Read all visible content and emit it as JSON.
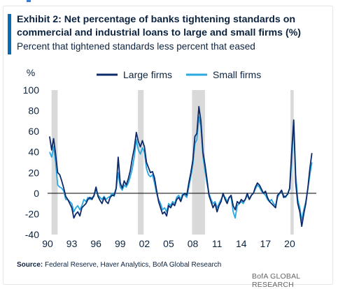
{
  "header": {
    "title": "Exhibit 2: Net percentage of banks tightening standards on commercial and industrial loans to large and small firms (%)",
    "subtitle": "Percent that tightened standards less percent that eased"
  },
  "footer": {
    "source_label": "Source:",
    "source_text": "Federal Reserve, Haver Analytics, BofA Global Research",
    "brand": "BofA GLOBAL RESEARCH"
  },
  "colors": {
    "large": "#0d2a6b",
    "small": "#2aa9e0",
    "recession": "#d9d9d9",
    "zero_line": "#000000"
  },
  "chart_data": {
    "type": "line",
    "ylabel": "%",
    "ylim": [
      -40,
      100
    ],
    "yticks": [
      -40,
      -20,
      0,
      20,
      40,
      60,
      80,
      100
    ],
    "xlim": [
      1990,
      2023.3
    ],
    "xticks": [
      1990,
      1993,
      1996,
      1999,
      2002,
      2005,
      2008,
      2011,
      2014,
      2017,
      2020
    ],
    "xtick_labels": [
      "90",
      "93",
      "96",
      "99",
      "02",
      "05",
      "08",
      "11",
      "14",
      "17",
      "20"
    ],
    "recessions": [
      [
        1990.5,
        1991.25
      ],
      [
        2001.2,
        2001.9
      ],
      [
        2007.9,
        2009.5
      ],
      [
        2020.1,
        2020.5
      ]
    ],
    "legend": "top",
    "series": [
      {
        "name": "Large firms",
        "color": "#0d2a6b",
        "points": [
          [
            1990.25,
            55
          ],
          [
            1990.5,
            42
          ],
          [
            1990.75,
            53
          ],
          [
            1991.0,
            38
          ],
          [
            1991.25,
            20
          ],
          [
            1991.5,
            18
          ],
          [
            1991.75,
            12
          ],
          [
            1992.0,
            5
          ],
          [
            1992.25,
            -3
          ],
          [
            1992.5,
            -6
          ],
          [
            1992.75,
            -10
          ],
          [
            1993.0,
            -14
          ],
          [
            1993.25,
            -24
          ],
          [
            1993.5,
            -20
          ],
          [
            1993.75,
            -18
          ],
          [
            1994.0,
            -22
          ],
          [
            1994.25,
            -14
          ],
          [
            1994.5,
            -12
          ],
          [
            1994.75,
            -10
          ],
          [
            1995.0,
            -6
          ],
          [
            1995.25,
            -4
          ],
          [
            1995.5,
            -6
          ],
          [
            1995.75,
            -2
          ],
          [
            1996.0,
            6
          ],
          [
            1996.25,
            -3
          ],
          [
            1996.5,
            -7
          ],
          [
            1996.75,
            -10
          ],
          [
            1997.0,
            -4
          ],
          [
            1997.25,
            -8
          ],
          [
            1997.5,
            -10
          ],
          [
            1997.75,
            -4
          ],
          [
            1998.0,
            -2
          ],
          [
            1998.25,
            -2
          ],
          [
            1998.5,
            5
          ],
          [
            1998.75,
            35
          ],
          [
            1999.0,
            10
          ],
          [
            1999.25,
            5
          ],
          [
            1999.5,
            12
          ],
          [
            1999.75,
            8
          ],
          [
            2000.0,
            14
          ],
          [
            2000.25,
            22
          ],
          [
            2000.5,
            34
          ],
          [
            2000.75,
            44
          ],
          [
            2001.0,
            59
          ],
          [
            2001.25,
            50
          ],
          [
            2001.5,
            45
          ],
          [
            2001.75,
            51
          ],
          [
            2002.0,
            45
          ],
          [
            2002.25,
            30
          ],
          [
            2002.5,
            25
          ],
          [
            2002.75,
            20
          ],
          [
            2003.0,
            21
          ],
          [
            2003.25,
            15
          ],
          [
            2003.5,
            3
          ],
          [
            2003.75,
            -8
          ],
          [
            2004.0,
            -14
          ],
          [
            2004.25,
            -20
          ],
          [
            2004.5,
            -18
          ],
          [
            2004.75,
            -22
          ],
          [
            2005.0,
            -12
          ],
          [
            2005.25,
            -14
          ],
          [
            2005.5,
            -10
          ],
          [
            2005.75,
            -12
          ],
          [
            2006.0,
            -6
          ],
          [
            2006.25,
            -4
          ],
          [
            2006.5,
            -8
          ],
          [
            2006.75,
            -2
          ],
          [
            2007.0,
            0
          ],
          [
            2007.25,
            -2
          ],
          [
            2007.5,
            10
          ],
          [
            2007.75,
            20
          ],
          [
            2008.0,
            32
          ],
          [
            2008.25,
            55
          ],
          [
            2008.5,
            58
          ],
          [
            2008.75,
            84
          ],
          [
            2009.0,
            70
          ],
          [
            2009.25,
            40
          ],
          [
            2009.5,
            28
          ],
          [
            2009.75,
            14
          ],
          [
            2010.0,
            -2
          ],
          [
            2010.25,
            -8
          ],
          [
            2010.5,
            -14
          ],
          [
            2010.75,
            -10
          ],
          [
            2011.0,
            -18
          ],
          [
            2011.25,
            -12
          ],
          [
            2011.5,
            -8
          ],
          [
            2011.75,
            0
          ],
          [
            2012.0,
            -6
          ],
          [
            2012.25,
            -10
          ],
          [
            2012.5,
            -4
          ],
          [
            2012.75,
            -2
          ],
          [
            2013.0,
            -12
          ],
          [
            2013.25,
            -16
          ],
          [
            2013.5,
            -8
          ],
          [
            2013.75,
            -10
          ],
          [
            2014.0,
            -6
          ],
          [
            2014.25,
            -8
          ],
          [
            2014.5,
            -6
          ],
          [
            2014.75,
            0
          ],
          [
            2015.0,
            -6
          ],
          [
            2015.25,
            -2
          ],
          [
            2015.5,
            0
          ],
          [
            2015.75,
            6
          ],
          [
            2016.0,
            10
          ],
          [
            2016.25,
            8
          ],
          [
            2016.5,
            4
          ],
          [
            2016.75,
            0
          ],
          [
            2017.0,
            2
          ],
          [
            2017.25,
            -4
          ],
          [
            2017.5,
            -8
          ],
          [
            2017.75,
            -10
          ],
          [
            2018.0,
            -12
          ],
          [
            2018.25,
            -14
          ],
          [
            2018.5,
            -2
          ],
          [
            2018.75,
            0
          ],
          [
            2019.0,
            3
          ],
          [
            2019.25,
            -4
          ],
          [
            2019.5,
            -3
          ],
          [
            2019.75,
            -1
          ],
          [
            2020.0,
            5
          ],
          [
            2020.25,
            40
          ],
          [
            2020.5,
            71
          ],
          [
            2020.75,
            10
          ],
          [
            2021.0,
            -10
          ],
          [
            2021.25,
            -18
          ],
          [
            2021.5,
            -32
          ],
          [
            2021.75,
            -20
          ],
          [
            2022.0,
            -10
          ],
          [
            2022.25,
            5
          ],
          [
            2022.5,
            24
          ],
          [
            2022.75,
            39
          ]
        ]
      },
      {
        "name": "Small firms",
        "color": "#2aa9e0",
        "points": [
          [
            1990.25,
            40
          ],
          [
            1990.5,
            35
          ],
          [
            1990.75,
            45
          ],
          [
            1991.0,
            30
          ],
          [
            1991.25,
            8
          ],
          [
            1991.5,
            6
          ],
          [
            1991.75,
            5
          ],
          [
            1992.0,
            2
          ],
          [
            1992.25,
            -6
          ],
          [
            1992.5,
            -6
          ],
          [
            1992.75,
            -8
          ],
          [
            1993.0,
            -10
          ],
          [
            1993.25,
            -18
          ],
          [
            1993.5,
            -14
          ],
          [
            1993.75,
            -12
          ],
          [
            1994.0,
            -16
          ],
          [
            1994.25,
            -12
          ],
          [
            1994.5,
            -6
          ],
          [
            1994.75,
            -8
          ],
          [
            1995.0,
            -4
          ],
          [
            1995.25,
            -6
          ],
          [
            1995.5,
            -4
          ],
          [
            1995.75,
            -3
          ],
          [
            1996.0,
            4
          ],
          [
            1996.25,
            -2
          ],
          [
            1996.5,
            -4
          ],
          [
            1996.75,
            -6
          ],
          [
            1997.0,
            -3
          ],
          [
            1997.25,
            -6
          ],
          [
            1997.5,
            -4
          ],
          [
            1997.75,
            -3
          ],
          [
            1998.0,
            0
          ],
          [
            1998.25,
            -3
          ],
          [
            1998.5,
            4
          ],
          [
            1998.75,
            20
          ],
          [
            1999.0,
            6
          ],
          [
            1999.25,
            3
          ],
          [
            1999.5,
            8
          ],
          [
            1999.75,
            6
          ],
          [
            2000.0,
            10
          ],
          [
            2000.25,
            16
          ],
          [
            2000.5,
            24
          ],
          [
            2000.75,
            36
          ],
          [
            2001.0,
            52
          ],
          [
            2001.25,
            42
          ],
          [
            2001.5,
            38
          ],
          [
            2001.75,
            44
          ],
          [
            2002.0,
            40
          ],
          [
            2002.25,
            24
          ],
          [
            2002.5,
            18
          ],
          [
            2002.75,
            16
          ],
          [
            2003.0,
            18
          ],
          [
            2003.25,
            10
          ],
          [
            2003.5,
            0
          ],
          [
            2003.75,
            -6
          ],
          [
            2004.0,
            -10
          ],
          [
            2004.25,
            -16
          ],
          [
            2004.5,
            -14
          ],
          [
            2004.75,
            -18
          ],
          [
            2005.0,
            -10
          ],
          [
            2005.25,
            -12
          ],
          [
            2005.5,
            -8
          ],
          [
            2005.75,
            -10
          ],
          [
            2006.0,
            -4
          ],
          [
            2006.25,
            -2
          ],
          [
            2006.5,
            -6
          ],
          [
            2006.75,
            0
          ],
          [
            2007.0,
            -2
          ],
          [
            2007.25,
            -4
          ],
          [
            2007.5,
            6
          ],
          [
            2007.75,
            16
          ],
          [
            2008.0,
            28
          ],
          [
            2008.25,
            48
          ],
          [
            2008.5,
            52
          ],
          [
            2008.75,
            74
          ],
          [
            2009.0,
            64
          ],
          [
            2009.25,
            36
          ],
          [
            2009.5,
            22
          ],
          [
            2009.75,
            10
          ],
          [
            2010.0,
            0
          ],
          [
            2010.25,
            -6
          ],
          [
            2010.5,
            -10
          ],
          [
            2010.75,
            -8
          ],
          [
            2011.0,
            -14
          ],
          [
            2011.25,
            -10
          ],
          [
            2011.5,
            -6
          ],
          [
            2011.75,
            -2
          ],
          [
            2012.0,
            -4
          ],
          [
            2012.25,
            -8
          ],
          [
            2012.5,
            -4
          ],
          [
            2012.75,
            -4
          ],
          [
            2013.0,
            -18
          ],
          [
            2013.25,
            -24
          ],
          [
            2013.5,
            -12
          ],
          [
            2013.75,
            -10
          ],
          [
            2014.0,
            -8
          ],
          [
            2014.25,
            -10
          ],
          [
            2014.5,
            -6
          ],
          [
            2014.75,
            -2
          ],
          [
            2015.0,
            -6
          ],
          [
            2015.25,
            -2
          ],
          [
            2015.5,
            0
          ],
          [
            2015.75,
            4
          ],
          [
            2016.0,
            8
          ],
          [
            2016.25,
            6
          ],
          [
            2016.5,
            2
          ],
          [
            2016.75,
            0
          ],
          [
            2017.0,
            -2
          ],
          [
            2017.25,
            -6
          ],
          [
            2017.5,
            -8
          ],
          [
            2017.75,
            -6
          ],
          [
            2018.0,
            -10
          ],
          [
            2018.25,
            -12
          ],
          [
            2018.5,
            -4
          ],
          [
            2018.75,
            0
          ],
          [
            2019.0,
            2
          ],
          [
            2019.25,
            -2
          ],
          [
            2019.5,
            -4
          ],
          [
            2019.75,
            0
          ],
          [
            2020.0,
            4
          ],
          [
            2020.25,
            30
          ],
          [
            2020.5,
            70
          ],
          [
            2020.75,
            18
          ],
          [
            2021.0,
            -6
          ],
          [
            2021.25,
            -14
          ],
          [
            2021.5,
            -26
          ],
          [
            2021.75,
            -16
          ],
          [
            2022.0,
            -8
          ],
          [
            2022.25,
            4
          ],
          [
            2022.5,
            18
          ],
          [
            2022.75,
            30
          ]
        ]
      }
    ]
  }
}
